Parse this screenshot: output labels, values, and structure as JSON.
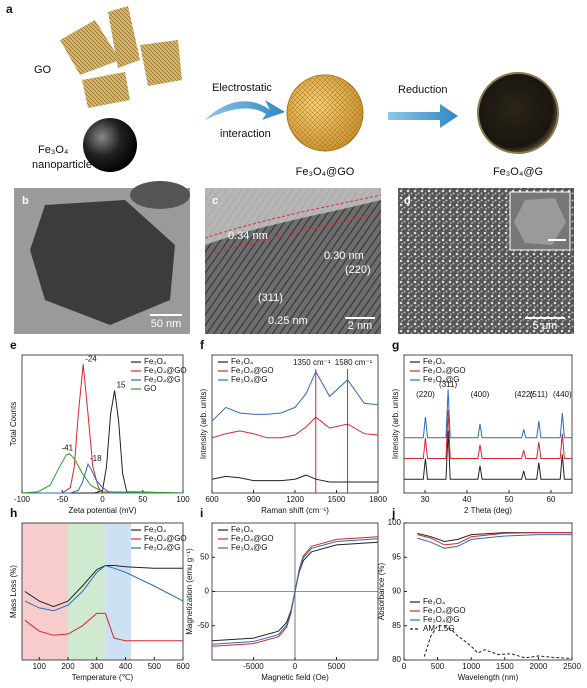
{
  "figure": {
    "schematic": {
      "panel": "a",
      "go": "GO",
      "fe3o4": "Fe₃O₄",
      "nanoparticle": "nanoparticle",
      "step1_top": "Electrostatic",
      "step1_bottom": "interaction",
      "step2": "Reduction",
      "product1": "Fe₃O₄@GO",
      "product2": "Fe₃O₄@G"
    },
    "micrographs": [
      {
        "panel": "b",
        "scale_bar": "50 nm"
      },
      {
        "panel": "c",
        "scale_bar": "2 nm",
        "annotations": [
          "0.34 nm",
          "0.30 nm",
          "(220)",
          "(311)",
          "0.25 nm"
        ]
      },
      {
        "panel": "d",
        "scale_bar": "5 μm"
      }
    ]
  },
  "chart_data": [
    {
      "type": "line",
      "panel": "e",
      "xlabel": "Zeta potential (mV)",
      "ylabel": "Total Counts",
      "xlim": [
        -100,
        100
      ],
      "ylim": [
        0,
        105
      ],
      "xticks": [
        -100,
        -50,
        0,
        50,
        100
      ],
      "legend": "upper right",
      "series": [
        {
          "name": "Fe₃O₄",
          "color": "#222222",
          "peak": 15,
          "x": [
            -100,
            -10,
            0,
            5,
            10,
            15,
            20,
            25,
            30,
            100
          ],
          "values": [
            0,
            0,
            2,
            20,
            60,
            78,
            55,
            15,
            1,
            0
          ]
        },
        {
          "name": "Fe₃O₄@GO",
          "color": "#d62728",
          "peak": -24,
          "x": [
            -100,
            -50,
            -40,
            -35,
            -30,
            -24,
            -18,
            -12,
            -5,
            0,
            100
          ],
          "values": [
            0,
            0,
            4,
            20,
            60,
            98,
            60,
            20,
            4,
            0,
            0
          ]
        },
        {
          "name": "Fe₃O₄@G",
          "color": "#2a6db5",
          "peak": -18,
          "x": [
            -100,
            -40,
            -30,
            -25,
            -20,
            -18,
            -14,
            -8,
            0,
            10,
            100
          ],
          "values": [
            0,
            0,
            2,
            8,
            18,
            22,
            18,
            10,
            4,
            0,
            0
          ]
        },
        {
          "name": "GO",
          "color": "#2ca02c",
          "peak": -41,
          "x": [
            -100,
            -80,
            -65,
            -55,
            -45,
            -41,
            -35,
            -25,
            -15,
            0,
            100
          ],
          "values": [
            0,
            1,
            6,
            18,
            29,
            30,
            26,
            15,
            6,
            1,
            0
          ]
        }
      ]
    },
    {
      "type": "line",
      "panel": "f",
      "xlabel": "Raman shift (cm⁻¹)",
      "ylabel": "Intensity (arb. units)",
      "xlim": [
        600,
        1800
      ],
      "ylim": [
        0,
        100
      ],
      "xticks": [
        600,
        900,
        1200,
        1500,
        1800
      ],
      "legend": "upper left",
      "vlines": [
        {
          "value": 1350,
          "label": "1350 cm⁻¹"
        },
        {
          "value": 1580,
          "label": "1580 cm⁻¹"
        }
      ],
      "x": [
        600,
        700,
        800,
        900,
        1000,
        1100,
        1200,
        1280,
        1350,
        1450,
        1580,
        1700,
        1800
      ],
      "series": [
        {
          "name": "Fe₃O₄",
          "color": "#222222",
          "values": [
            10,
            12,
            11,
            9,
            9,
            9,
            10,
            13,
            10,
            8,
            8,
            8,
            8
          ]
        },
        {
          "name": "Fe₃O₄@GO",
          "color": "#d62728",
          "values": [
            40,
            43,
            45,
            43,
            40,
            40,
            42,
            48,
            55,
            47,
            50,
            43,
            42
          ]
        },
        {
          "name": "Fe₃O₄@G",
          "color": "#2a6db5",
          "values": [
            52,
            62,
            58,
            57,
            57,
            58,
            62,
            72,
            88,
            70,
            82,
            65,
            64
          ]
        }
      ]
    },
    {
      "type": "line",
      "panel": "g",
      "xlabel": "2 Theta (deg)",
      "ylabel": "Intensity (arb. units)",
      "xlim": [
        25,
        65
      ],
      "ylim": [
        0,
        100
      ],
      "xticks": [
        30,
        40,
        50,
        60
      ],
      "legend": "upper left",
      "peaks": [
        {
          "value": 30.1,
          "label": "(220)"
        },
        {
          "value": 35.5,
          "label": "(311)"
        },
        {
          "value": 43.1,
          "label": "(400)"
        },
        {
          "value": 53.5,
          "label": "(422)"
        },
        {
          "value": 57.1,
          "label": "(511)"
        },
        {
          "value": 62.7,
          "label": "(440)"
        }
      ],
      "x": [
        25,
        29.6,
        30.1,
        30.6,
        35,
        35.5,
        36,
        42.6,
        43.1,
        43.6,
        53,
        53.5,
        54,
        56.6,
        57.1,
        57.6,
        62.2,
        62.7,
        63.2,
        65
      ],
      "series": [
        {
          "name": "Fe₃O₄",
          "color": "#222222",
          "values": [
            10,
            10,
            25,
            10,
            10,
            45,
            10,
            10,
            20,
            10,
            10,
            16,
            10,
            10,
            22,
            10,
            10,
            28,
            10,
            10
          ]
        },
        {
          "name": "Fe₃O₄@GO",
          "color": "#d62728",
          "values": [
            25,
            25,
            40,
            25,
            25,
            60,
            25,
            25,
            35,
            25,
            25,
            31,
            25,
            25,
            37,
            25,
            25,
            43,
            25,
            25
          ]
        },
        {
          "name": "Fe₃O₄@G",
          "color": "#2a6db5",
          "values": [
            40,
            40,
            55,
            40,
            40,
            75,
            40,
            40,
            50,
            40,
            40,
            46,
            40,
            40,
            52,
            40,
            40,
            58,
            40,
            40
          ]
        }
      ]
    },
    {
      "type": "line",
      "panel": "h",
      "xlabel": "Temperature (℃)",
      "ylabel": "Mass Loss (%)",
      "xlim": [
        40,
        600
      ],
      "ylim": [
        0,
        100
      ],
      "xticks": [
        100,
        200,
        300,
        400,
        500,
        600
      ],
      "legend": "upper right",
      "regions": [
        {
          "range": [
            40,
            200
          ],
          "color": "#f29a9a"
        },
        {
          "range": [
            200,
            330
          ],
          "color": "#9fd69f"
        },
        {
          "range": [
            330,
            420
          ],
          "color": "#9cc3ea"
        }
      ],
      "x": [
        50,
        100,
        150,
        200,
        250,
        300,
        330,
        360,
        400,
        500,
        600
      ],
      "series": [
        {
          "name": "Fe₃O₄",
          "color": "#222222",
          "values": [
            50,
            43,
            39,
            43,
            54,
            66,
            69,
            69,
            68,
            67,
            67
          ]
        },
        {
          "name": "Fe₃O₄@GO",
          "color": "#d62728",
          "values": [
            29,
            21,
            18,
            19,
            25,
            34,
            34,
            16,
            14,
            14,
            14
          ]
        },
        {
          "name": "Fe₃O₄@G",
          "color": "#2a6db5",
          "values": [
            43,
            38,
            36,
            40,
            50,
            64,
            69,
            67,
            64,
            54,
            43
          ]
        }
      ]
    },
    {
      "type": "line",
      "panel": "i",
      "xlabel": "Magnetic field (Oe)",
      "ylabel": "Magnetization (emu g⁻¹)",
      "xlim": [
        -10000,
        10000
      ],
      "ylim": [
        -100,
        100
      ],
      "xticks": [
        -5000,
        0,
        5000
      ],
      "yticks": [
        -50,
        0,
        50
      ],
      "zero_lines": true,
      "legend": "upper left",
      "x": [
        -10000,
        -5000,
        -2000,
        -1000,
        -500,
        0,
        500,
        1000,
        2000,
        5000,
        10000
      ],
      "series": [
        {
          "name": "Fe₃O₄",
          "color": "#222222",
          "values": [
            -72,
            -68,
            -58,
            -45,
            -28,
            0,
            28,
            45,
            58,
            68,
            72
          ]
        },
        {
          "name": "Fe₃O₄@GO",
          "color": "#d62728",
          "values": [
            -80,
            -76,
            -66,
            -52,
            -32,
            0,
            32,
            52,
            66,
            76,
            80
          ]
        },
        {
          "name": "Fe₃O₄@G",
          "color": "#2a6db5",
          "values": [
            -77,
            -73,
            -63,
            -49,
            -30,
            0,
            30,
            49,
            63,
            73,
            77
          ]
        }
      ]
    },
    {
      "type": "line",
      "panel": "j",
      "xlabel": "Wavelength (nm)",
      "ylabel": "Absorbance (%)",
      "xlim": [
        0,
        2500
      ],
      "ylim": [
        80,
        100
      ],
      "xticks": [
        0,
        500,
        1000,
        1500,
        2000,
        2500
      ],
      "yticks": [
        80,
        85,
        90,
        95,
        100
      ],
      "legend": "lower left",
      "series": [
        {
          "name": "Fe₃O₄",
          "color": "#222222",
          "x": [
            200,
            400,
            600,
            800,
            1000,
            1500,
            2000,
            2500
          ],
          "values": [
            98.5,
            98,
            97.3,
            97.6,
            98.3,
            98.6,
            98.6,
            98.6
          ]
        },
        {
          "name": "Fe₃O₄@GO",
          "color": "#d62728",
          "x": [
            200,
            400,
            600,
            800,
            1000,
            1500,
            2000,
            2500
          ],
          "values": [
            98.3,
            97.8,
            96.8,
            97,
            98,
            98.5,
            98.6,
            98.6
          ]
        },
        {
          "name": "Fe₃O₄@G",
          "color": "#2a6db5",
          "x": [
            200,
            400,
            600,
            800,
            1000,
            1500,
            2000,
            2500
          ],
          "values": [
            97.8,
            97.2,
            96.3,
            96.6,
            97.6,
            98.1,
            98.3,
            98.3
          ]
        },
        {
          "name": "AM 1.5G",
          "color": "#222222",
          "style": "dashed",
          "x": [
            300,
            400,
            500,
            600,
            700,
            800,
            900,
            1000,
            1100,
            1200,
            1400,
            1600,
            1800,
            2000,
            2200,
            2500
          ],
          "values": [
            80.5,
            83.5,
            85,
            85,
            84.5,
            83.5,
            82.8,
            82,
            81,
            81.5,
            80.8,
            80.9,
            80.3,
            80.6,
            80.4,
            80.2
          ]
        }
      ]
    }
  ]
}
